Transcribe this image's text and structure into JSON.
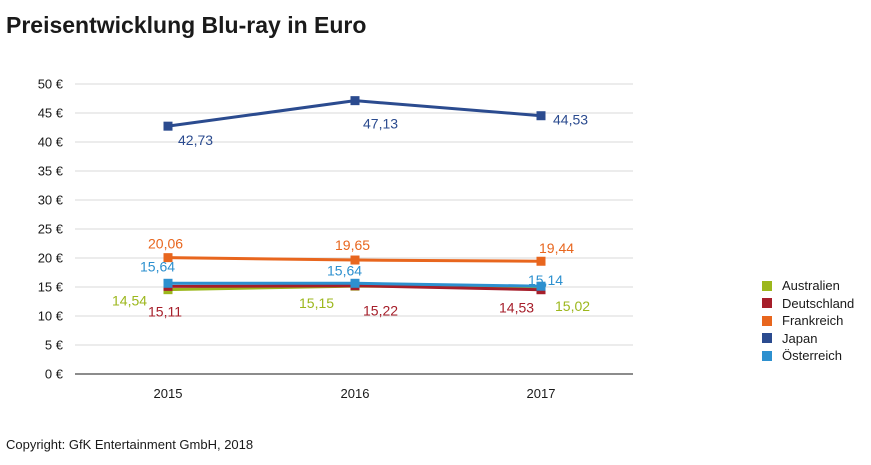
{
  "title": "Preisentwicklung Blu-ray in Euro",
  "copyright": "Copyright: GfK Entertainment GmbH, 2018",
  "chart_data": {
    "type": "line",
    "title": "Preisentwicklung Blu-ray in Euro",
    "xlabel": "",
    "ylabel": "",
    "categories": [
      "2015",
      "2016",
      "2017"
    ],
    "yticks": [
      "0 €",
      "5 €",
      "10 €",
      "15 €",
      "20 €",
      "25 €",
      "30 €",
      "35 €",
      "40 €",
      "45 €",
      "50 €"
    ],
    "ylim": [
      0,
      50
    ],
    "grid": true,
    "legend_position": "right",
    "series": [
      {
        "name": "Australien",
        "color": "#9cb71c",
        "values": [
          14.54,
          15.15,
          15.02
        ],
        "labels": [
          "14,54",
          "15,15",
          "15,02"
        ]
      },
      {
        "name": "Deutschland",
        "color": "#a61e2a",
        "values": [
          15.11,
          15.22,
          14.53
        ],
        "labels": [
          "15,11",
          "15,22",
          "14,53"
        ]
      },
      {
        "name": "Frankreich",
        "color": "#e8661e",
        "values": [
          20.06,
          19.65,
          19.44
        ],
        "labels": [
          "20,06",
          "19,65",
          "19,44"
        ]
      },
      {
        "name": "Japan",
        "color": "#2b4b8f",
        "values": [
          42.73,
          47.13,
          44.53
        ],
        "labels": [
          "42,73",
          "47,13",
          "44,53"
        ]
      },
      {
        "name": "Österreich",
        "color": "#2d90cf",
        "values": [
          15.64,
          15.64,
          15.14
        ],
        "labels": [
          "15,64",
          "15,64",
          "15,14"
        ]
      }
    ]
  }
}
